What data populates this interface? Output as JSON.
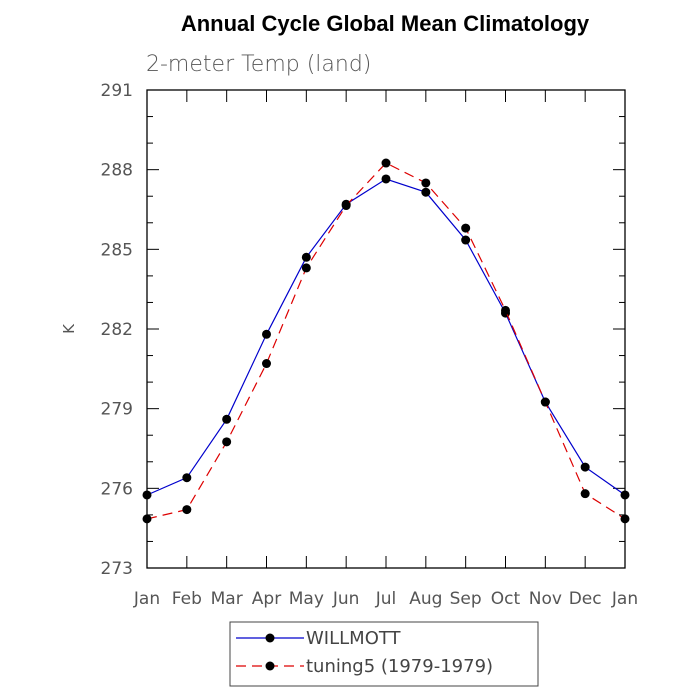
{
  "chart_data": {
    "type": "line",
    "title": "Annual Cycle Global Mean Climatology",
    "subtitle": "2-meter Temp (land)",
    "ylabel": "K",
    "xlabel": "",
    "categories": [
      "Jan",
      "Feb",
      "Mar",
      "Apr",
      "May",
      "Jun",
      "Jul",
      "Aug",
      "Sep",
      "Oct",
      "Nov",
      "Dec",
      "Jan"
    ],
    "ylim": [
      273,
      291
    ],
    "yticks": [
      273,
      276,
      279,
      282,
      285,
      288,
      291
    ],
    "grid": false,
    "legend_position": "bottom-center",
    "series": [
      {
        "name": "WILLMOTT",
        "color": "#0000cc",
        "dash": "solid",
        "values": [
          275.75,
          276.4,
          278.6,
          281.8,
          284.7,
          286.7,
          287.65,
          287.15,
          285.35,
          282.6,
          279.25,
          276.8,
          275.75
        ]
      },
      {
        "name": "tuning5 (1979-1979)",
        "color": "#dd0000",
        "dash": "dashed",
        "values": [
          274.85,
          275.2,
          277.75,
          280.7,
          284.3,
          286.65,
          288.25,
          287.5,
          285.8,
          282.7,
          279.25,
          275.8,
          274.85
        ]
      }
    ]
  }
}
